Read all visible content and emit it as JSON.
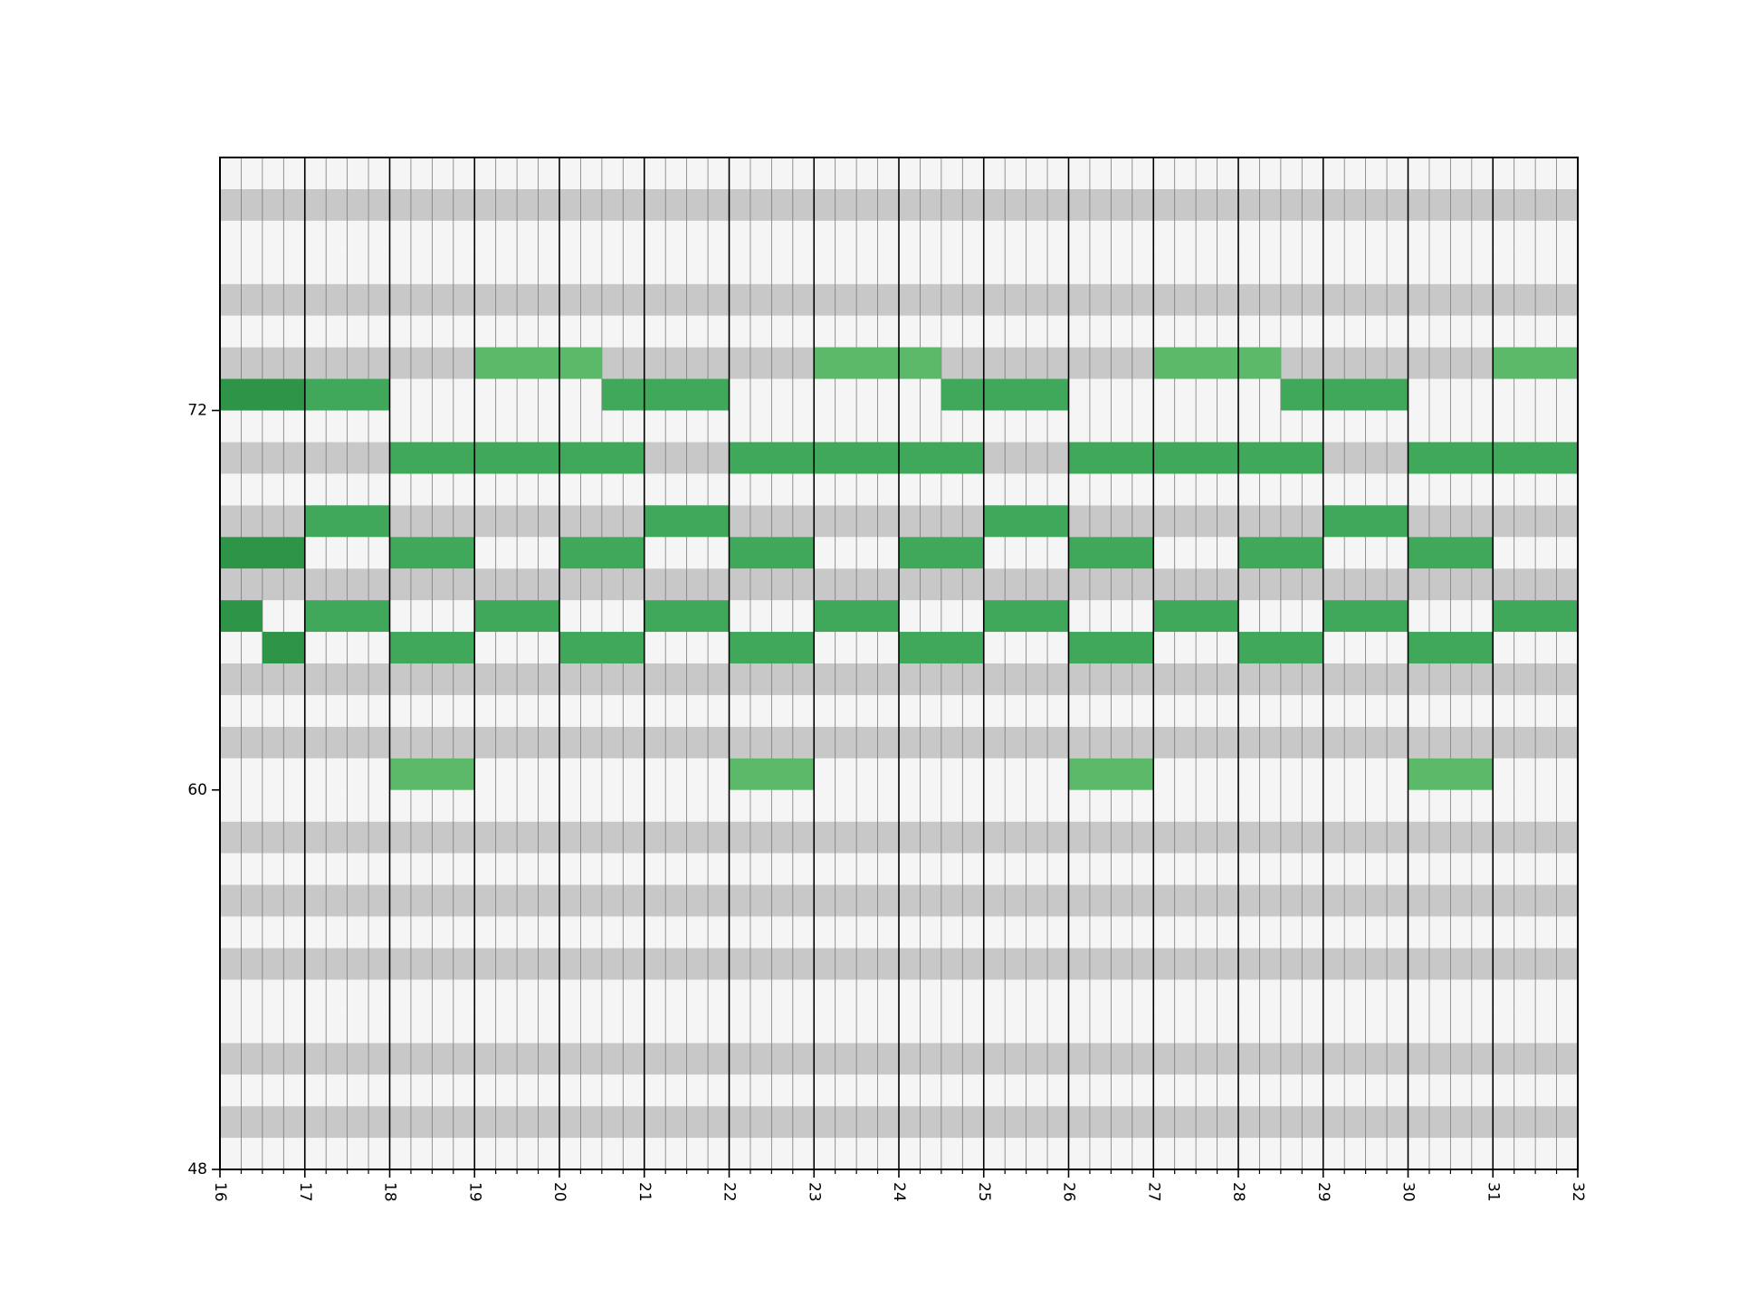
{
  "chart_data": {
    "type": "heatmap",
    "subtype": "piano-roll",
    "title": "",
    "xlabel": "",
    "ylabel": "",
    "xlim": [
      16,
      32
    ],
    "ylim": [
      48,
      80
    ],
    "x_ticks": [
      "16",
      "17",
      "18",
      "19",
      "20",
      "21",
      "22",
      "23",
      "24",
      "25",
      "26",
      "27",
      "28",
      "29",
      "30",
      "31",
      "32"
    ],
    "y_ticks": [
      "48",
      "60",
      "72"
    ],
    "minor_x_step": 0.25,
    "grid": true,
    "black_key_pitch_classes": [
      1,
      3,
      6,
      8,
      10
    ],
    "colors": {
      "white_key_row": "#f5f5f5",
      "black_key_row": "#c8c8c8",
      "note_dark": "#2e9448",
      "note_mid": "#3fa85a",
      "note_light": "#5cb96a"
    },
    "notes": [
      {
        "start": 16,
        "end": 17,
        "pitch": 72,
        "shade": "note_dark"
      },
      {
        "start": 16,
        "end": 17,
        "pitch": 67,
        "shade": "note_dark"
      },
      {
        "start": 16,
        "end": 16.5,
        "pitch": 65,
        "shade": "note_dark"
      },
      {
        "start": 16.5,
        "end": 17,
        "pitch": 64,
        "shade": "note_dark"
      },
      {
        "start": 17,
        "end": 18,
        "pitch": 72,
        "shade": "note_mid"
      },
      {
        "start": 17,
        "end": 18,
        "pitch": 68,
        "shade": "note_mid"
      },
      {
        "start": 17,
        "end": 18,
        "pitch": 65,
        "shade": "note_mid"
      },
      {
        "start": 18,
        "end": 19,
        "pitch": 70,
        "shade": "note_mid"
      },
      {
        "start": 18,
        "end": 19,
        "pitch": 67,
        "shade": "note_mid"
      },
      {
        "start": 18,
        "end": 19,
        "pitch": 64,
        "shade": "note_mid"
      },
      {
        "start": 18,
        "end": 19,
        "pitch": 60,
        "shade": "note_light"
      },
      {
        "start": 19,
        "end": 20.5,
        "pitch": 73,
        "shade": "note_light"
      },
      {
        "start": 19,
        "end": 21,
        "pitch": 70,
        "shade": "note_mid"
      },
      {
        "start": 19,
        "end": 20,
        "pitch": 65,
        "shade": "note_mid"
      },
      {
        "start": 20,
        "end": 21,
        "pitch": 67,
        "shade": "note_mid"
      },
      {
        "start": 20,
        "end": 21,
        "pitch": 64,
        "shade": "note_mid"
      },
      {
        "start": 20.5,
        "end": 21,
        "pitch": 72,
        "shade": "note_mid"
      },
      {
        "start": 21,
        "end": 22,
        "pitch": 72,
        "shade": "note_mid"
      },
      {
        "start": 21,
        "end": 22,
        "pitch": 68,
        "shade": "note_mid"
      },
      {
        "start": 21,
        "end": 22,
        "pitch": 65,
        "shade": "note_mid"
      },
      {
        "start": 22,
        "end": 25,
        "pitch": 70,
        "shade": "note_mid"
      },
      {
        "start": 22,
        "end": 23,
        "pitch": 67,
        "shade": "note_mid"
      },
      {
        "start": 22,
        "end": 23,
        "pitch": 64,
        "shade": "note_mid"
      },
      {
        "start": 22,
        "end": 23,
        "pitch": 60,
        "shade": "note_light"
      },
      {
        "start": 23,
        "end": 24.5,
        "pitch": 73,
        "shade": "note_light"
      },
      {
        "start": 23,
        "end": 24,
        "pitch": 65,
        "shade": "note_mid"
      },
      {
        "start": 24,
        "end": 25,
        "pitch": 67,
        "shade": "note_mid"
      },
      {
        "start": 24,
        "end": 25,
        "pitch": 64,
        "shade": "note_mid"
      },
      {
        "start": 24.5,
        "end": 25,
        "pitch": 72,
        "shade": "note_mid"
      },
      {
        "start": 25,
        "end": 26,
        "pitch": 72,
        "shade": "note_mid"
      },
      {
        "start": 25,
        "end": 26,
        "pitch": 68,
        "shade": "note_mid"
      },
      {
        "start": 25,
        "end": 26,
        "pitch": 65,
        "shade": "note_mid"
      },
      {
        "start": 26,
        "end": 29,
        "pitch": 70,
        "shade": "note_mid"
      },
      {
        "start": 26,
        "end": 27,
        "pitch": 67,
        "shade": "note_mid"
      },
      {
        "start": 26,
        "end": 27,
        "pitch": 64,
        "shade": "note_mid"
      },
      {
        "start": 26,
        "end": 27,
        "pitch": 60,
        "shade": "note_light"
      },
      {
        "start": 27,
        "end": 28.5,
        "pitch": 73,
        "shade": "note_light"
      },
      {
        "start": 27,
        "end": 28,
        "pitch": 65,
        "shade": "note_mid"
      },
      {
        "start": 28,
        "end": 29,
        "pitch": 67,
        "shade": "note_mid"
      },
      {
        "start": 28,
        "end": 29,
        "pitch": 64,
        "shade": "note_mid"
      },
      {
        "start": 28.5,
        "end": 29,
        "pitch": 72,
        "shade": "note_mid"
      },
      {
        "start": 29,
        "end": 30,
        "pitch": 72,
        "shade": "note_mid"
      },
      {
        "start": 29,
        "end": 30,
        "pitch": 68,
        "shade": "note_mid"
      },
      {
        "start": 29,
        "end": 30,
        "pitch": 65,
        "shade": "note_mid"
      },
      {
        "start": 30,
        "end": 32,
        "pitch": 70,
        "shade": "note_mid"
      },
      {
        "start": 30,
        "end": 31,
        "pitch": 67,
        "shade": "note_mid"
      },
      {
        "start": 30,
        "end": 31,
        "pitch": 64,
        "shade": "note_mid"
      },
      {
        "start": 30,
        "end": 31,
        "pitch": 60,
        "shade": "note_light"
      },
      {
        "start": 31,
        "end": 32,
        "pitch": 73,
        "shade": "note_light"
      },
      {
        "start": 31,
        "end": 32,
        "pitch": 65,
        "shade": "note_mid"
      }
    ]
  }
}
